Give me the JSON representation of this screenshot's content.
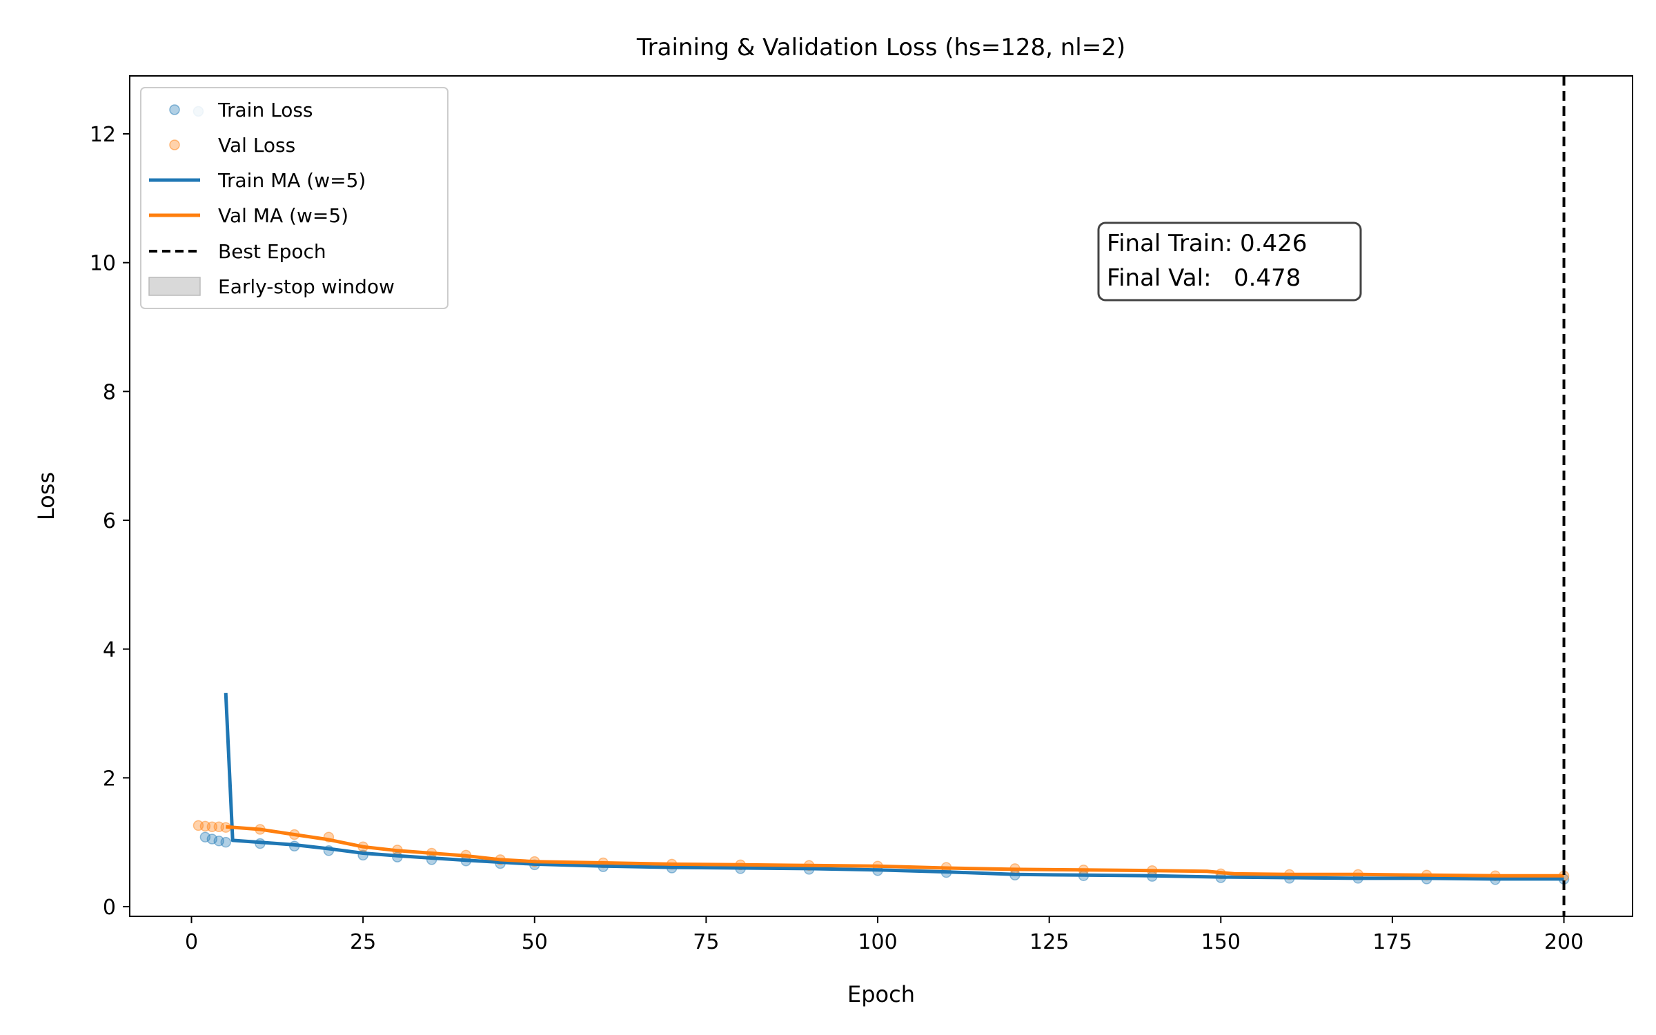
{
  "chart_data": {
    "type": "line",
    "title": "Training & Validation Loss (hs=128, nl=2)",
    "xlabel": "Epoch",
    "ylabel": "Loss",
    "xlim": [
      -9,
      210
    ],
    "ylim": [
      -0.15,
      12.9
    ],
    "xticks": [
      0,
      25,
      50,
      75,
      100,
      125,
      150,
      175,
      200
    ],
    "yticks": [
      0,
      2,
      4,
      6,
      8,
      10,
      12
    ],
    "grid": false,
    "legend_position": "top-left",
    "legend": [
      {
        "kind": "scatter",
        "label": "Train Loss",
        "color": "#1f77b4"
      },
      {
        "kind": "scatter",
        "label": "Val Loss",
        "color": "#ff7f0e"
      },
      {
        "kind": "line",
        "label": "Train MA (w=5)",
        "color": "#1f77b4"
      },
      {
        "kind": "line",
        "label": "Val MA   (w=5)",
        "color": "#ff7f0e"
      },
      {
        "kind": "dashed",
        "label": "Best Epoch",
        "color": "#000000"
      },
      {
        "kind": "patch",
        "label": "Early-stop window",
        "color": "#d9d9d9"
      }
    ],
    "series": [
      {
        "kind": "scatter",
        "color": "#1f77b4",
        "opacity": 0.35,
        "x": [
          1,
          2,
          3,
          4,
          5,
          10,
          15,
          20,
          25,
          30,
          35,
          40,
          45,
          50,
          60,
          70,
          80,
          90,
          100,
          110,
          120,
          130,
          140,
          150,
          160,
          170,
          180,
          190,
          200
        ],
        "values": [
          12.35,
          1.08,
          1.05,
          1.02,
          1.0,
          0.98,
          0.94,
          0.87,
          0.8,
          0.77,
          0.73,
          0.71,
          0.67,
          0.65,
          0.62,
          0.6,
          0.59,
          0.58,
          0.56,
          0.53,
          0.49,
          0.48,
          0.47,
          0.45,
          0.44,
          0.44,
          0.43,
          0.42,
          0.426
        ]
      },
      {
        "kind": "scatter",
        "color": "#ff7f0e",
        "opacity": 0.35,
        "x": [
          1,
          2,
          3,
          4,
          5,
          10,
          15,
          20,
          25,
          30,
          35,
          40,
          45,
          50,
          60,
          70,
          80,
          90,
          100,
          110,
          120,
          130,
          140,
          150,
          160,
          170,
          180,
          190,
          200
        ],
        "values": [
          1.26,
          1.25,
          1.24,
          1.24,
          1.23,
          1.2,
          1.12,
          1.08,
          0.93,
          0.88,
          0.83,
          0.8,
          0.73,
          0.7,
          0.68,
          0.66,
          0.65,
          0.64,
          0.63,
          0.61,
          0.59,
          0.57,
          0.56,
          0.51,
          0.5,
          0.5,
          0.49,
          0.48,
          0.478
        ]
      },
      {
        "kind": "line",
        "name": "Train MA (w=5)",
        "color": "#1f77b4",
        "x": [
          5,
          6,
          10,
          15,
          20,
          25,
          30,
          40,
          50,
          60,
          70,
          80,
          90,
          100,
          110,
          120,
          130,
          140,
          150,
          160,
          170,
          180,
          190,
          200
        ],
        "values": [
          3.32,
          1.03,
          1.0,
          0.96,
          0.9,
          0.83,
          0.79,
          0.72,
          0.66,
          0.63,
          0.61,
          0.6,
          0.59,
          0.57,
          0.54,
          0.5,
          0.49,
          0.48,
          0.46,
          0.45,
          0.44,
          0.44,
          0.43,
          0.43
        ]
      },
      {
        "kind": "line",
        "name": "Val MA   (w=5)",
        "color": "#ff7f0e",
        "x": [
          5,
          10,
          15,
          20,
          25,
          30,
          35,
          40,
          45,
          50,
          60,
          70,
          80,
          90,
          100,
          110,
          120,
          130,
          140,
          148,
          152,
          160,
          170,
          180,
          190,
          200
        ],
        "values": [
          1.24,
          1.2,
          1.12,
          1.04,
          0.93,
          0.87,
          0.83,
          0.79,
          0.73,
          0.7,
          0.68,
          0.66,
          0.65,
          0.64,
          0.63,
          0.6,
          0.58,
          0.57,
          0.56,
          0.55,
          0.51,
          0.5,
          0.5,
          0.49,
          0.48,
          0.48
        ]
      }
    ],
    "best_epoch": 200,
    "annotation": {
      "line1": "Final Train: 0.426",
      "line2": "Final Val:   0.478"
    }
  }
}
